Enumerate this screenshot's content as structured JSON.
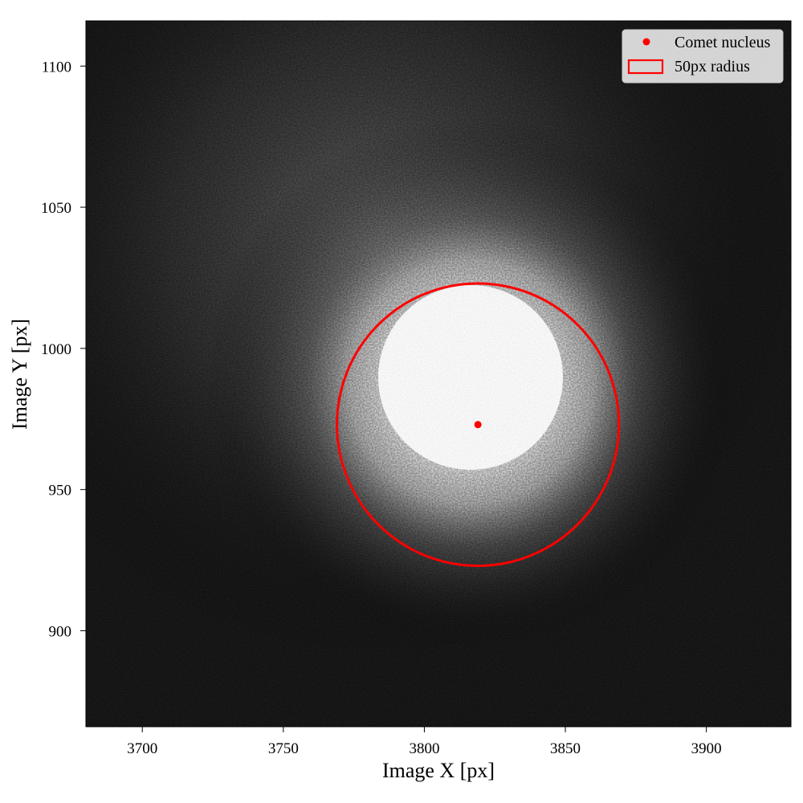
{
  "chart_data": {
    "type": "scatter",
    "title": "",
    "xlabel": "Image X [px]",
    "ylabel": "Image Y [px]",
    "xlim": [
      3680,
      3930
    ],
    "ylim": [
      866,
      1116
    ],
    "x_ticks": [
      3700,
      3750,
      3800,
      3850,
      3900
    ],
    "y_ticks": [
      900,
      950,
      1000,
      1050,
      1100
    ],
    "grid": false,
    "legend_placement": "top-right",
    "background": "grayscale image of comet coma",
    "series": [
      {
        "name": "Comet nucleus",
        "marker": "dot",
        "color": "#ff0000",
        "points": [
          {
            "x": 3819,
            "y": 973
          }
        ]
      },
      {
        "name": "50px radius",
        "marker": "circle-outline",
        "color": "#ff0000",
        "center": {
          "x": 3819,
          "y": 973
        },
        "radius": 50
      }
    ]
  }
}
